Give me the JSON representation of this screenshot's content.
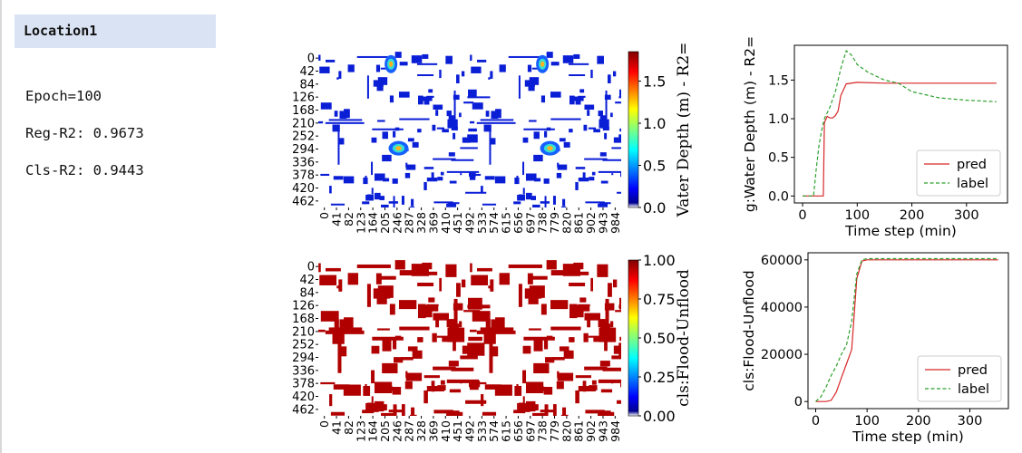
{
  "location_label": "Location1",
  "stats": {
    "epoch": "Epoch=100",
    "reg_r2": "Reg-R2: 0.9673",
    "cls_r2": "Cls-R2: 0.9443"
  },
  "colors": {
    "header_bg": "#dae3f3",
    "pred_line": "#d62728",
    "label_line": "#2ca02c",
    "flood_red": "#b00000",
    "water_blue": "#0a1ed6"
  },
  "chart_data": [
    {
      "type": "heatmap",
      "ylabel_ticks": [
        "0",
        "42",
        "84",
        "126",
        "168",
        "210",
        "252",
        "294",
        "336",
        "378",
        "420",
        "462"
      ],
      "xlabel_ticks": [
        "0",
        "41",
        "82",
        "123",
        "164",
        "205",
        "246",
        "287",
        "328",
        "369",
        "410",
        "451",
        "492",
        "533",
        "574",
        "615",
        "656",
        "697",
        "738",
        "779",
        "820",
        "861",
        "902",
        "943",
        "984"
      ],
      "colorbar": {
        "ticks": [
          "0.0",
          "0.5",
          "1.0",
          "1.5"
        ],
        "range": [
          0,
          1.85
        ],
        "colormap": "jet",
        "label": "Vater Depth (m) - R2="
      }
    },
    {
      "type": "line",
      "ylabel": "g:Water Depth (m) - R2=",
      "xlabel": "Time step (min)",
      "xticks": [
        "0",
        "100",
        "200",
        "300"
      ],
      "yticks": [
        "0.0",
        "0.5",
        "1.0",
        "1.5"
      ],
      "xlim": [
        -15,
        375
      ],
      "ylim": [
        -0.09,
        1.95
      ],
      "legend": {
        "position": "lower-right",
        "entries": [
          "pred",
          "label"
        ]
      },
      "series": [
        {
          "name": "pred",
          "style": "solid",
          "x": [
            0,
            38,
            40,
            45,
            50,
            55,
            60,
            65,
            70,
            80,
            100,
            150,
            200,
            250,
            300,
            355
          ],
          "y": [
            0,
            0,
            0.95,
            1.03,
            1.01,
            1.01,
            1.04,
            1.1,
            1.3,
            1.45,
            1.47,
            1.46,
            1.46,
            1.46,
            1.46,
            1.46
          ]
        },
        {
          "name": "label",
          "style": "dashed",
          "x": [
            0,
            20,
            25,
            30,
            35,
            40,
            50,
            60,
            70,
            80,
            90,
            100,
            120,
            150,
            175,
            200,
            250,
            300,
            355
          ],
          "y": [
            0,
            0,
            0.35,
            0.65,
            0.85,
            1.0,
            1.15,
            1.35,
            1.65,
            1.88,
            1.82,
            1.7,
            1.6,
            1.5,
            1.46,
            1.35,
            1.27,
            1.24,
            1.22
          ]
        }
      ]
    },
    {
      "type": "heatmap",
      "ylabel_ticks": [
        "0",
        "42",
        "84",
        "126",
        "168",
        "210",
        "252",
        "294",
        "336",
        "378",
        "420",
        "462"
      ],
      "xlabel_ticks": [
        "0",
        "41",
        "82",
        "123",
        "164",
        "205",
        "246",
        "287",
        "328",
        "369",
        "410",
        "451",
        "492",
        "533",
        "574",
        "615",
        "656",
        "697",
        "738",
        "779",
        "820",
        "861",
        "902",
        "943",
        "984"
      ],
      "colorbar": {
        "ticks": [
          "0.00",
          "0.25",
          "0.50",
          "0.75",
          "1.00"
        ],
        "range": [
          0,
          1.0
        ],
        "colormap": "jet",
        "label": "cls:Flood-Unflood"
      }
    },
    {
      "type": "line",
      "ylabel": "cls:Flood-Unflood",
      "xlabel": "Time step (min)",
      "xticks": [
        "0",
        "100",
        "200",
        "300"
      ],
      "yticks": [
        "0",
        "20000",
        "40000",
        "60000"
      ],
      "xlim": [
        -15,
        375
      ],
      "ylim": [
        -3000,
        63000
      ],
      "legend": {
        "position": "lower-right",
        "entries": [
          "pred",
          "label"
        ]
      },
      "series": [
        {
          "name": "pred",
          "style": "solid",
          "x": [
            0,
            20,
            30,
            40,
            50,
            60,
            70,
            80,
            90,
            100,
            150,
            200,
            300,
            355
          ],
          "y": [
            0,
            0,
            500,
            4000,
            10000,
            16000,
            22000,
            52000,
            59500,
            60000,
            60000,
            60000,
            60000,
            60000
          ]
        },
        {
          "name": "label",
          "style": "dashed",
          "x": [
            0,
            10,
            20,
            30,
            40,
            50,
            60,
            70,
            80,
            90,
            100,
            150,
            200,
            300,
            355
          ],
          "y": [
            0,
            2000,
            6000,
            11000,
            15000,
            20000,
            24000,
            34000,
            54000,
            60000,
            60500,
            60500,
            60500,
            60500,
            60500
          ]
        }
      ]
    }
  ]
}
